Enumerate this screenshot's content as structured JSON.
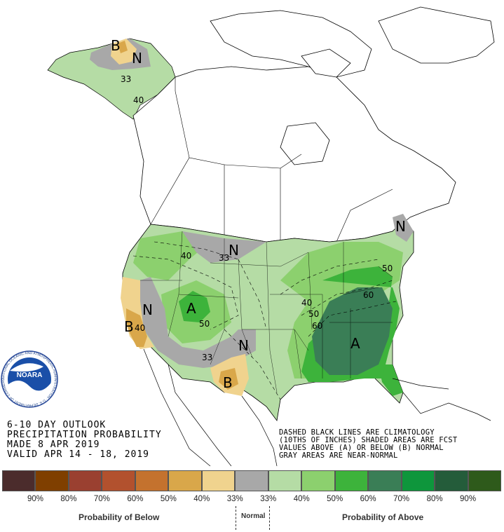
{
  "title_lines": [
    "6-10 DAY OUTLOOK",
    "PRECIPITATION PROBABILITY",
    "MADE  8 APR 2019",
    "VALID  APR 14 - 18, 2019"
  ],
  "note_lines": [
    "DASHED BLACK LINES ARE CLIMATOLOGY",
    "(10THS OF INCHES) SHADED AREAS ARE FCST",
    "VALUES ABOVE (A) OR BELOW (B) NORMAL",
    "GRAY AREAS ARE NEAR-NORMAL"
  ],
  "logo": {
    "text": "NOARA",
    "ring_text": "NATIONAL OCEANIC AND ATMOSPHERIC ADMINISTRATION · U.S. DEPARTMENT OF COMMERCE"
  },
  "map_labels": {
    "ak_b": "B",
    "ak_n": "N",
    "ak_33": "33",
    "ak_40": "40",
    "nw_40": "40",
    "nn_33": "33",
    "nn_n": "N",
    "ca_n": "N",
    "ca_b": "B",
    "ca_40": "40",
    "co_a": "A",
    "co_50": "50",
    "sw_33": "33",
    "tx_n": "N",
    "tx_b": "B",
    "ne_n": "N",
    "e_50": "50",
    "e_60": "60",
    "e_40": "40",
    "se_50": "50",
    "se_60": "60",
    "se_a": "A"
  },
  "legend": {
    "swatches": [
      "#4b2c2c",
      "#7f3f00",
      "#9a4030",
      "#b2512e",
      "#c4722e",
      "#d9a74a",
      "#f0d38e",
      "#a8a8a8",
      "#b5dca5",
      "#8cd06e",
      "#3db33b",
      "#3a7e56",
      "#0e963c",
      "#245c3a",
      "#2e5a1b"
    ],
    "ticks": [
      "90%",
      "80%",
      "70%",
      "60%",
      "50%",
      "40%",
      "33%",
      "33%",
      "40%",
      "50%",
      "60%",
      "70%",
      "80%",
      "90%"
    ],
    "below_caption": "Probability of Below",
    "normal_caption": "Normal",
    "above_caption": "Probability of Above"
  },
  "colors": {
    "above_33": "#b5dca5",
    "above_40": "#8cd06e",
    "above_50": "#3db33b",
    "above_60": "#3a7e56",
    "below_33": "#f0d38e",
    "below_40": "#d9a74a",
    "normal": "#a8a8a8"
  }
}
